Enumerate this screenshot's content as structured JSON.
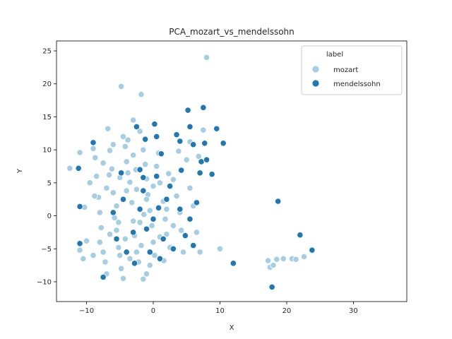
{
  "chart_data": {
    "type": "scatter",
    "title": "PCA_mozart_vs_mendelssohn",
    "xlabel": "X",
    "ylabel": "Y",
    "xlim": [
      -14.5,
      38
    ],
    "ylim": [
      -13,
      26.5
    ],
    "xticks": [
      -10,
      0,
      10,
      20,
      30
    ],
    "yticks": [
      -10,
      -5,
      0,
      5,
      10,
      15,
      20,
      25
    ],
    "grid": false,
    "legend": {
      "title": "label",
      "placement": "top-right"
    },
    "series": [
      {
        "name": "mozart",
        "color": "#a6cee3",
        "points": [
          [
            -12.5,
            7.2
          ],
          [
            -11.0,
            9.6
          ],
          [
            -10.3,
            1.3
          ],
          [
            -10.0,
            -3.8
          ],
          [
            -10.5,
            -6.5
          ],
          [
            -9.5,
            5.0
          ],
          [
            -9.0,
            10.2
          ],
          [
            -8.7,
            8.8
          ],
          [
            -8.5,
            6.0
          ],
          [
            -8.2,
            2.8
          ],
          [
            -8.0,
            0.5
          ],
          [
            -7.8,
            -1.8
          ],
          [
            -7.5,
            -5.5
          ],
          [
            -7.2,
            -7.0
          ],
          [
            -7.0,
            4.2
          ],
          [
            -6.8,
            13.2
          ],
          [
            -6.5,
            9.9
          ],
          [
            -6.2,
            7.1
          ],
          [
            -6.0,
            3.5
          ],
          [
            -5.8,
            -0.3
          ],
          [
            -5.5,
            -2.2
          ],
          [
            -5.2,
            -4.8
          ],
          [
            -5.0,
            -6.0
          ],
          [
            -4.8,
            -8.0
          ],
          [
            -4.5,
            -9.5
          ],
          [
            -4.8,
            19.6
          ],
          [
            -4.5,
            12.0
          ],
          [
            -4.2,
            10.5
          ],
          [
            -4.0,
            8.2
          ],
          [
            -3.8,
            6.5
          ],
          [
            -3.5,
            5.1
          ],
          [
            -3.2,
            2.0
          ],
          [
            -3.0,
            -0.8
          ],
          [
            -2.8,
            -3.0
          ],
          [
            -2.5,
            -5.5
          ],
          [
            -2.2,
            -7.0
          ],
          [
            -3.0,
            14.5
          ],
          [
            -2.0,
            12.8
          ],
          [
            -1.8,
            18.4
          ],
          [
            -1.5,
            10.0
          ],
          [
            -1.2,
            7.8
          ],
          [
            -1.0,
            5.6
          ],
          [
            -0.8,
            3.2
          ],
          [
            -0.5,
            0.8
          ],
          [
            -0.2,
            -1.5
          ],
          [
            0.0,
            -4.0
          ],
          [
            0.2,
            -6.0
          ],
          [
            -1.5,
            -9.6
          ],
          [
            -1.0,
            -8.8
          ],
          [
            0.5,
            7.5
          ],
          [
            1.0,
            5.0
          ],
          [
            1.5,
            2.2
          ],
          [
            1.8,
            -0.5
          ],
          [
            2.0,
            -2.8
          ],
          [
            2.5,
            -4.8
          ],
          [
            3.0,
            5.5
          ],
          [
            3.5,
            3.0
          ],
          [
            4.0,
            0.5
          ],
          [
            4.2,
            -2.2
          ],
          [
            4.5,
            -5.5
          ],
          [
            5.0,
            8.5
          ],
          [
            5.5,
            4.2
          ],
          [
            6.0,
            1.5
          ],
          [
            6.5,
            -2.5
          ],
          [
            7.0,
            -5.5
          ],
          [
            5.5,
            11.2
          ],
          [
            7.5,
            13.0
          ],
          [
            8.0,
            24.0
          ],
          [
            6.8,
            9.0
          ],
          [
            10.0,
            -5.0
          ],
          [
            -9.0,
            -6.0
          ],
          [
            -8.0,
            -4.0
          ],
          [
            -6.5,
            -2.8
          ],
          [
            -5.5,
            1.5
          ],
          [
            -4.0,
            3.8
          ],
          [
            -3.5,
            -6.5
          ],
          [
            -2.0,
            -1.0
          ],
          [
            -1.0,
            2.5
          ],
          [
            0.0,
            4.5
          ],
          [
            1.0,
            -3.2
          ],
          [
            2.0,
            1.0
          ],
          [
            3.0,
            -1.5
          ],
          [
            -7.5,
            8.0
          ],
          [
            -6.0,
            10.8
          ],
          [
            -5.0,
            5.8
          ],
          [
            -4.2,
            -3.5
          ],
          [
            -3.0,
            9.2
          ],
          [
            -2.5,
            4.0
          ],
          [
            -1.8,
            -4.5
          ],
          [
            -0.5,
            -7.5
          ],
          [
            17.5,
            -7.8
          ],
          [
            17.2,
            -6.8
          ],
          [
            18.0,
            -7.5
          ],
          [
            18.5,
            -6.6
          ],
          [
            19.5,
            -6.5
          ],
          [
            20.8,
            -6.5
          ],
          [
            21.4,
            -6.6
          ],
          [
            22.6,
            -6.2
          ],
          [
            -11.0,
            -5.2
          ],
          [
            -7.0,
            -8.8
          ],
          [
            -3.8,
            11.5
          ],
          [
            -2.6,
            7.0
          ],
          [
            0.8,
            9.5
          ],
          [
            2.3,
            6.4
          ],
          [
            3.8,
            9.8
          ],
          [
            -8.8,
            3.0
          ],
          [
            -6.6,
            6.2
          ],
          [
            -5.2,
            -1.0
          ],
          [
            -1.4,
            0.2
          ],
          [
            1.6,
            -6.8
          ]
        ]
      },
      {
        "name": "mendelssohn",
        "color": "#1f78b4",
        "points": [
          [
            -11.2,
            7.2
          ],
          [
            -11.0,
            1.4
          ],
          [
            -11.0,
            -4.2
          ],
          [
            -9.0,
            11.1
          ],
          [
            -7.5,
            -9.3
          ],
          [
            -5.5,
            -3.5
          ],
          [
            -4.5,
            2.5
          ],
          [
            -4.0,
            -5.5
          ],
          [
            -2.5,
            13.5
          ],
          [
            -2.0,
            7.0
          ],
          [
            -1.5,
            3.8
          ],
          [
            -1.2,
            11.6
          ],
          [
            -1.0,
            -2.0
          ],
          [
            -0.5,
            -5.5
          ],
          [
            0.2,
            13.9
          ],
          [
            0.5,
            12.0
          ],
          [
            0.8,
            1.2
          ],
          [
            1.2,
            9.4
          ],
          [
            1.5,
            -3.5
          ],
          [
            2.5,
            4.5
          ],
          [
            3.5,
            12.3
          ],
          [
            4.0,
            11.3
          ],
          [
            4.2,
            6.9
          ],
          [
            4.8,
            -3.0
          ],
          [
            5.2,
            16.0
          ],
          [
            5.5,
            13.5
          ],
          [
            6.0,
            10.8
          ],
          [
            6.5,
            2.0
          ],
          [
            7.2,
            8.2
          ],
          [
            7.5,
            16.4
          ],
          [
            7.7,
            11.0
          ],
          [
            8.0,
            8.5
          ],
          [
            8.8,
            6.3
          ],
          [
            9.5,
            13.2
          ],
          [
            10.5,
            11.0
          ],
          [
            12.0,
            -7.2
          ],
          [
            17.8,
            -10.8
          ],
          [
            18.7,
            2.2
          ],
          [
            22.0,
            -2.9
          ],
          [
            23.8,
            -5.2
          ],
          [
            -6.0,
            0.5
          ],
          [
            -3.0,
            -2.5
          ],
          [
            -2.0,
            1.0
          ],
          [
            0.0,
            -0.5
          ],
          [
            2.0,
            2.5
          ],
          [
            3.0,
            -5.0
          ],
          [
            4.0,
            1.0
          ],
          [
            6.0,
            -4.5
          ],
          [
            1.0,
            -6.5
          ],
          [
            -1.5,
            5.8
          ],
          [
            7.0,
            6.5
          ],
          [
            5.5,
            -0.5
          ],
          [
            -4.8,
            6.5
          ],
          [
            -2.8,
            -7.2
          ],
          [
            0.5,
            6.0
          ]
        ]
      }
    ]
  }
}
